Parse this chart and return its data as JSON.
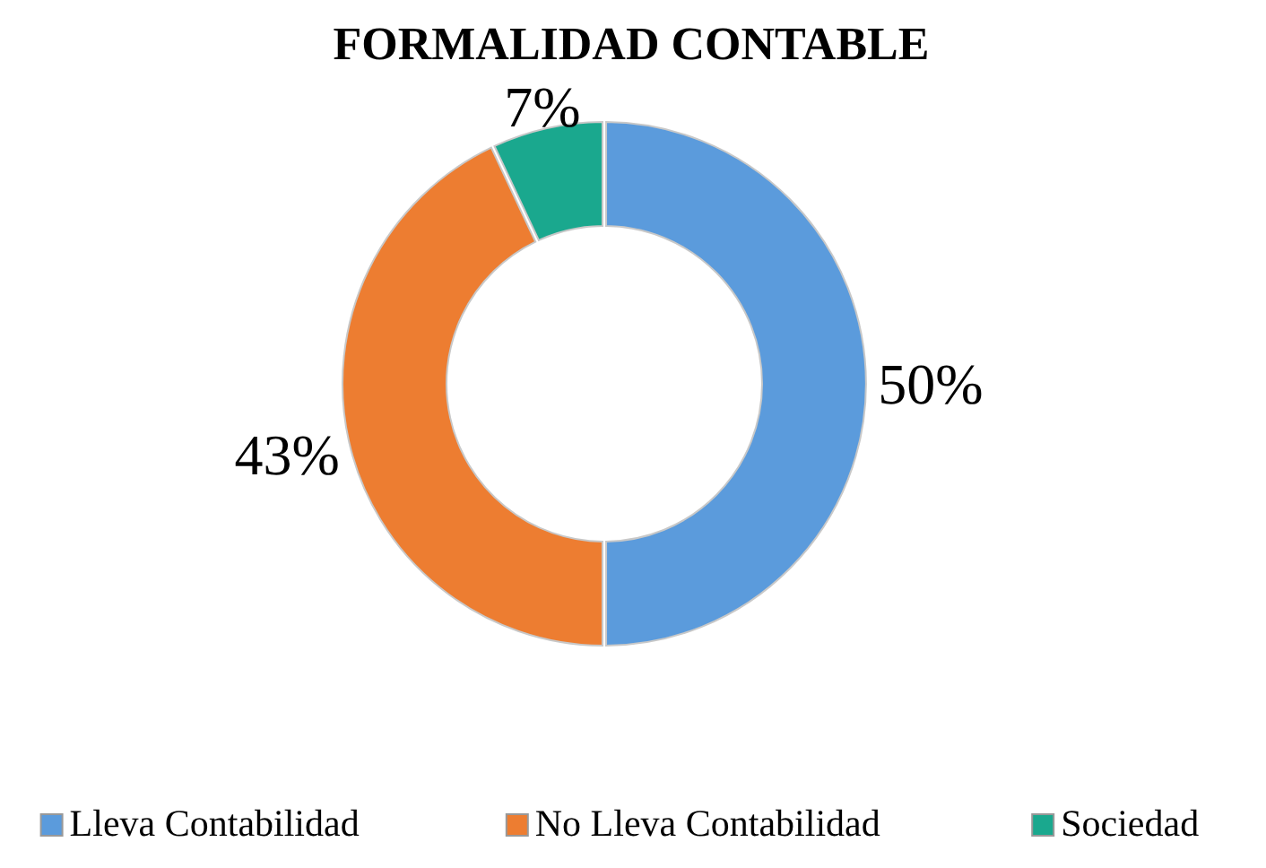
{
  "chart_data": {
    "type": "donut",
    "title": "FORMALIDAD CONTABLE",
    "categories": [
      "Lleva Contabilidad",
      "No Lleva Contabilidad",
      "Sociedad"
    ],
    "values": [
      50,
      43,
      7
    ],
    "colors": [
      "#5b9bdc",
      "#ed7d31",
      "#1aa88e"
    ],
    "value_labels": [
      "50%",
      "43%",
      "7%"
    ],
    "legend": "bottom"
  }
}
